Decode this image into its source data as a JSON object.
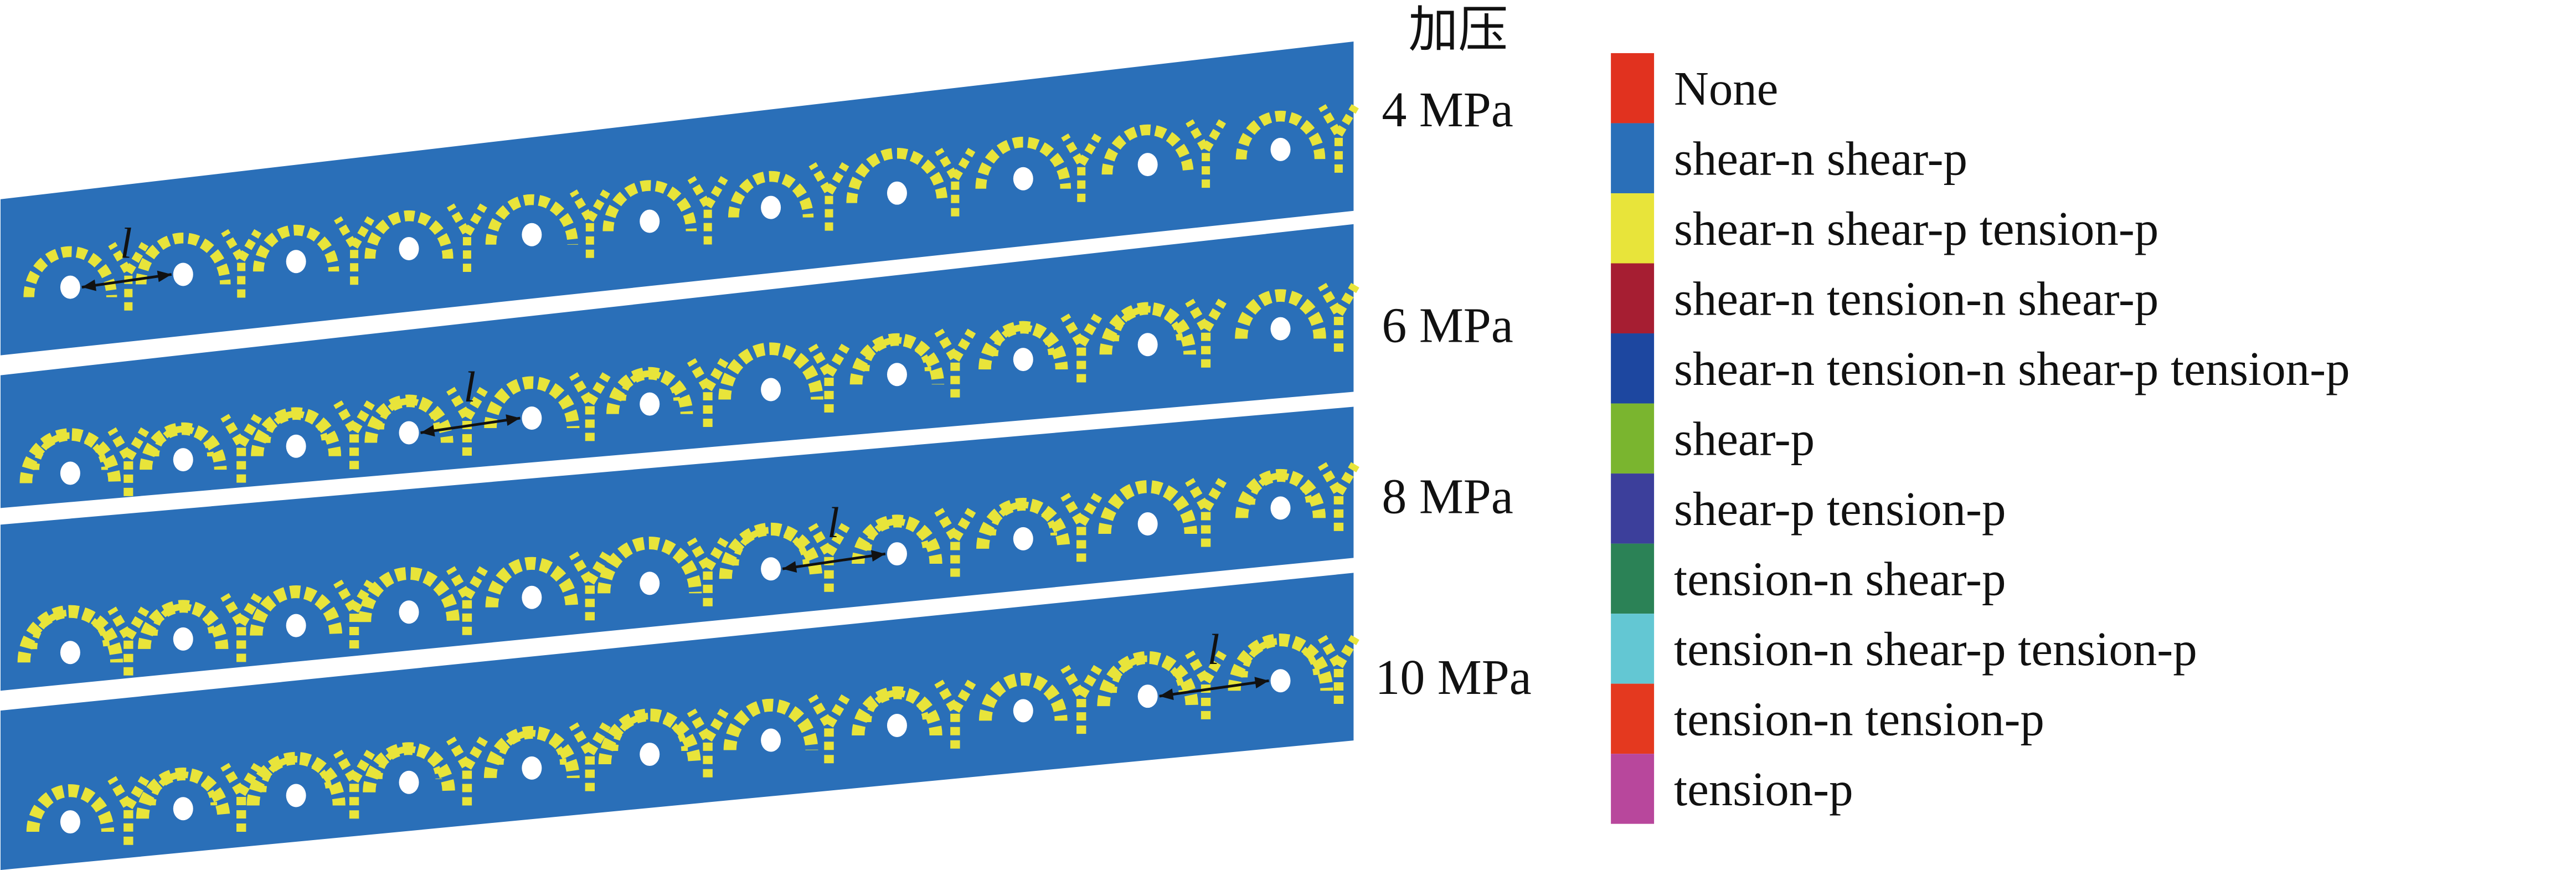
{
  "pressure_heading": "加压",
  "panels": [
    {
      "pressure": "4 MPa",
      "spacing_label": "l"
    },
    {
      "pressure": "6 MPa",
      "spacing_label": "l"
    },
    {
      "pressure": "8 MPa",
      "spacing_label": "l"
    },
    {
      "pressure": "10 MPa",
      "spacing_label": "l"
    }
  ],
  "colors": {
    "background_zone": "#2a6fb8",
    "failure_zone": "#e8e43a",
    "borehole": "#ffffff"
  },
  "legend": [
    {
      "label": "None",
      "color": "#e1321f"
    },
    {
      "label": "shear-n shear-p",
      "color": "#2a6fb8"
    },
    {
      "label": "shear-n shear-p tension-p",
      "color": "#e8e43a"
    },
    {
      "label": "shear-n tension-n shear-p",
      "color": "#a61e32"
    },
    {
      "label": "shear-n tension-n shear-p tension-p",
      "color": "#1d47a0"
    },
    {
      "label": "shear-p",
      "color": "#7ab52f"
    },
    {
      "label": "shear-p tension-p",
      "color": "#3c3f9b"
    },
    {
      "label": "tension-n shear-p",
      "color": "#2b8256"
    },
    {
      "label": "tension-n shear-p tension-p",
      "color": "#63c7d3"
    },
    {
      "label": "tension-n tension-p",
      "color": "#e4391f"
    },
    {
      "label": "tension-p",
      "color": "#b8479c"
    }
  ]
}
